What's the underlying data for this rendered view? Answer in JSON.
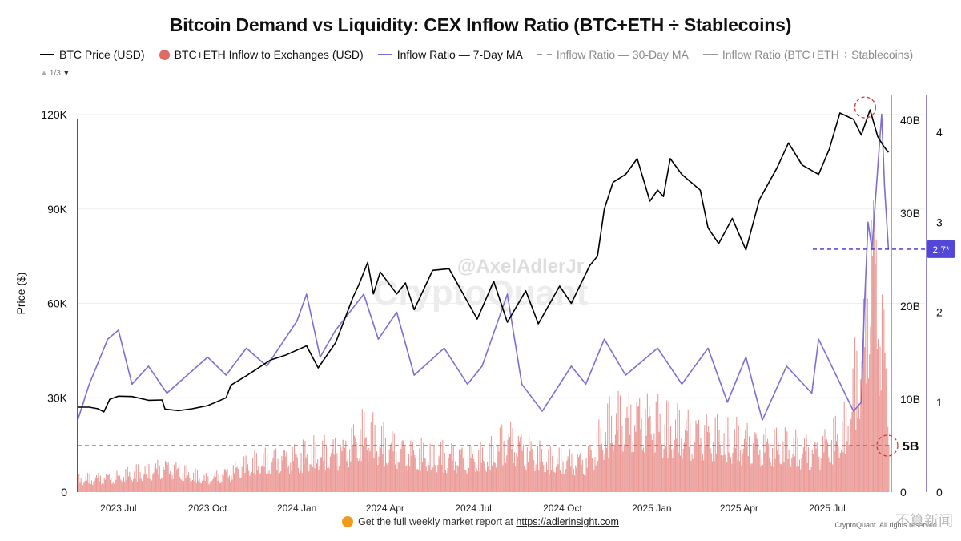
{
  "chart_data": {
    "type": "line",
    "title": "Bitcoin Demand vs Liquidity: CEX Inflow Ratio (BTC+ETH ÷ Stablecoins)",
    "ylabel": "Price ($)",
    "legend": {
      "position": "top",
      "items": [
        {
          "label": "BTC Price (USD)",
          "marker": "line",
          "color": "#000000",
          "visible": true
        },
        {
          "label": "BTC+ETH Inflow to Exchanges (USD)",
          "marker": "dot",
          "color": "#e06a66",
          "visible": true
        },
        {
          "label": "Inflow Ratio — 7-Day MA",
          "marker": "line",
          "color": "#7b70d2",
          "visible": true
        },
        {
          "label": "Inflow Ratio — 30-Day MA",
          "marker": "dash",
          "color": "#999999",
          "visible": false
        },
        {
          "label": "Inflow Ratio (BTC+ETH ÷ Stablecoins)",
          "marker": "line",
          "color": "#999999",
          "visible": false
        }
      ],
      "pager": "1/3"
    },
    "x_ticks": [
      "2023 Jul",
      "2023 Oct",
      "2024 Jan",
      "2024 Apr",
      "2024 Jul",
      "2024 Oct",
      "2025 Jan",
      "2025 Apr",
      "2025 Jul"
    ],
    "x_range": [
      "2023-05-20",
      "2025-09-05"
    ],
    "y_axes": {
      "price": {
        "ticks": [
          "0",
          "30K",
          "60K",
          "90K",
          "120K"
        ],
        "range": [
          0,
          120000
        ]
      },
      "inflow": {
        "ticks": [
          "0",
          "10B",
          "20B",
          "30B",
          "40B"
        ],
        "range": [
          0,
          40000000000
        ]
      },
      "ratio": {
        "ticks": [
          "0",
          "1",
          "2",
          "3",
          "4"
        ],
        "range": [
          0,
          4
        ]
      }
    },
    "annotations": {
      "inflow_threshold": {
        "label": "5B",
        "value": 5000000000
      },
      "ratio_marker": {
        "label": "2.7*",
        "value": 2.7
      }
    },
    "series": [
      {
        "name": "BTC Price (USD)",
        "axis": "price",
        "color": "#000000",
        "points": [
          [
            "2023-05-20",
            27000
          ],
          [
            "2023-06-01",
            27000
          ],
          [
            "2023-06-10",
            26500
          ],
          [
            "2023-06-16",
            25500
          ],
          [
            "2023-06-22",
            29500
          ],
          [
            "2023-07-01",
            30500
          ],
          [
            "2023-07-15",
            30400
          ],
          [
            "2023-08-01",
            29200
          ],
          [
            "2023-08-15",
            29300
          ],
          [
            "2023-08-18",
            26400
          ],
          [
            "2023-09-01",
            25900
          ],
          [
            "2023-09-15",
            26500
          ],
          [
            "2023-10-01",
            27500
          ],
          [
            "2023-10-20",
            30000
          ],
          [
            "2023-10-25",
            34000
          ],
          [
            "2023-11-10",
            37000
          ],
          [
            "2023-12-05",
            42000
          ],
          [
            "2023-12-20",
            43500
          ],
          [
            "2024-01-11",
            46500
          ],
          [
            "2024-01-23",
            39500
          ],
          [
            "2024-02-10",
            47500
          ],
          [
            "2024-02-28",
            62000
          ],
          [
            "2024-03-05",
            66000
          ],
          [
            "2024-03-14",
            73000
          ],
          [
            "2024-03-20",
            63000
          ],
          [
            "2024-03-27",
            70000
          ],
          [
            "2024-04-13",
            63000
          ],
          [
            "2024-04-22",
            66500
          ],
          [
            "2024-05-01",
            58000
          ],
          [
            "2024-05-20",
            70500
          ],
          [
            "2024-06-06",
            71000
          ],
          [
            "2024-06-25",
            60500
          ],
          [
            "2024-07-05",
            55000
          ],
          [
            "2024-07-22",
            67000
          ],
          [
            "2024-08-05",
            54000
          ],
          [
            "2024-08-24",
            64000
          ],
          [
            "2024-09-06",
            53500
          ],
          [
            "2024-09-28",
            65500
          ],
          [
            "2024-10-10",
            60000
          ],
          [
            "2024-10-29",
            72000
          ],
          [
            "2024-11-06",
            75000
          ],
          [
            "2024-11-13",
            90000
          ],
          [
            "2024-11-22",
            98500
          ],
          [
            "2024-12-05",
            101000
          ],
          [
            "2024-12-17",
            106000
          ],
          [
            "2024-12-30",
            92500
          ],
          [
            "2025-01-07",
            96000
          ],
          [
            "2025-01-13",
            94000
          ],
          [
            "2025-01-20",
            106000
          ],
          [
            "2025-02-01",
            101000
          ],
          [
            "2025-02-20",
            96000
          ],
          [
            "2025-02-28",
            84000
          ],
          [
            "2025-03-11",
            79000
          ],
          [
            "2025-03-25",
            87000
          ],
          [
            "2025-04-08",
            77000
          ],
          [
            "2025-04-22",
            93000
          ],
          [
            "2025-05-10",
            103000
          ],
          [
            "2025-05-22",
            111000
          ],
          [
            "2025-06-05",
            104000
          ],
          [
            "2025-06-22",
            101000
          ],
          [
            "2025-07-03",
            109000
          ],
          [
            "2025-07-14",
            120500
          ],
          [
            "2025-07-28",
            118500
          ],
          [
            "2025-08-05",
            113500
          ],
          [
            "2025-08-14",
            121500
          ],
          [
            "2025-08-22",
            113000
          ],
          [
            "2025-08-28",
            110000
          ],
          [
            "2025-09-02",
            108000
          ]
        ]
      },
      {
        "name": "BTC+ETH Inflow to Exchanges (USD)",
        "axis": "inflow",
        "color": "#e06a66",
        "points": [
          [
            "2023-05-20",
            2000000000
          ],
          [
            "2023-07-01",
            2500000000
          ],
          [
            "2023-08-18",
            4000000000
          ],
          [
            "2023-10-01",
            2000000000
          ],
          [
            "2023-11-15",
            4500000000
          ],
          [
            "2024-01-11",
            6000000000
          ],
          [
            "2024-02-15",
            6500000000
          ],
          [
            "2024-03-10",
            9500000000
          ],
          [
            "2024-03-25",
            8000000000
          ],
          [
            "2024-05-01",
            6000000000
          ],
          [
            "2024-07-15",
            5500000000
          ],
          [
            "2024-08-05",
            8500000000
          ],
          [
            "2024-09-15",
            5000000000
          ],
          [
            "2024-10-25",
            5000000000
          ],
          [
            "2024-11-20",
            11000000000
          ],
          [
            "2024-12-20",
            12000000000
          ],
          [
            "2025-01-20",
            10000000000
          ],
          [
            "2025-03-01",
            9000000000
          ],
          [
            "2025-04-08",
            8000000000
          ],
          [
            "2025-05-20",
            7000000000
          ],
          [
            "2025-06-20",
            6500000000
          ],
          [
            "2025-07-20",
            10000000000
          ],
          [
            "2025-08-10",
            26000000000
          ],
          [
            "2025-08-14",
            42000000000
          ],
          [
            "2025-08-22",
            31000000000
          ],
          [
            "2025-09-02",
            14000000000
          ]
        ]
      },
      {
        "name": "Inflow Ratio — 7-Day MA",
        "axis": "ratio",
        "color": "#7b70d2",
        "points": [
          [
            "2023-05-20",
            0.8
          ],
          [
            "2023-06-01",
            1.2
          ],
          [
            "2023-06-20",
            1.7
          ],
          [
            "2023-07-01",
            1.8
          ],
          [
            "2023-07-15",
            1.2
          ],
          [
            "2023-08-01",
            1.4
          ],
          [
            "2023-08-20",
            1.1
          ],
          [
            "2023-09-10",
            1.3
          ],
          [
            "2023-10-01",
            1.5
          ],
          [
            "2023-10-20",
            1.3
          ],
          [
            "2023-11-10",
            1.6
          ],
          [
            "2023-12-01",
            1.4
          ],
          [
            "2024-01-01",
            1.9
          ],
          [
            "2024-01-11",
            2.2
          ],
          [
            "2024-01-25",
            1.5
          ],
          [
            "2024-02-10",
            1.8
          ],
          [
            "2024-03-10",
            2.2
          ],
          [
            "2024-03-25",
            1.7
          ],
          [
            "2024-04-13",
            2.0
          ],
          [
            "2024-05-01",
            1.3
          ],
          [
            "2024-06-01",
            1.6
          ],
          [
            "2024-06-25",
            1.2
          ],
          [
            "2024-07-10",
            1.4
          ],
          [
            "2024-08-05",
            2.2
          ],
          [
            "2024-08-20",
            1.2
          ],
          [
            "2024-09-10",
            0.9
          ],
          [
            "2024-10-10",
            1.4
          ],
          [
            "2024-10-25",
            1.2
          ],
          [
            "2024-11-13",
            1.7
          ],
          [
            "2024-12-05",
            1.3
          ],
          [
            "2025-01-07",
            1.6
          ],
          [
            "2025-02-01",
            1.2
          ],
          [
            "2025-02-28",
            1.6
          ],
          [
            "2025-03-20",
            1.0
          ],
          [
            "2025-04-08",
            1.5
          ],
          [
            "2025-04-25",
            0.8
          ],
          [
            "2025-05-20",
            1.4
          ],
          [
            "2025-06-15",
            1.1
          ],
          [
            "2025-06-22",
            1.7
          ],
          [
            "2025-07-10",
            1.3
          ],
          [
            "2025-07-28",
            0.9
          ],
          [
            "2025-08-05",
            1.0
          ],
          [
            "2025-08-08",
            2.0
          ],
          [
            "2025-08-12",
            3.0
          ],
          [
            "2025-08-16",
            2.7
          ],
          [
            "2025-08-22",
            3.6
          ],
          [
            "2025-08-26",
            4.2
          ],
          [
            "2025-08-29",
            3.4
          ],
          [
            "2025-09-02",
            2.7
          ]
        ]
      }
    ]
  },
  "footer": {
    "text": "Get the full weekly market report at",
    "link": "https://adlerinsight.com",
    "credit": "CryptoQuant. All rights reserved"
  },
  "watermarks": {
    "handle": "@AxelAdlerJr",
    "brand": "CryptoQuant",
    "corner": "不算新闻"
  }
}
